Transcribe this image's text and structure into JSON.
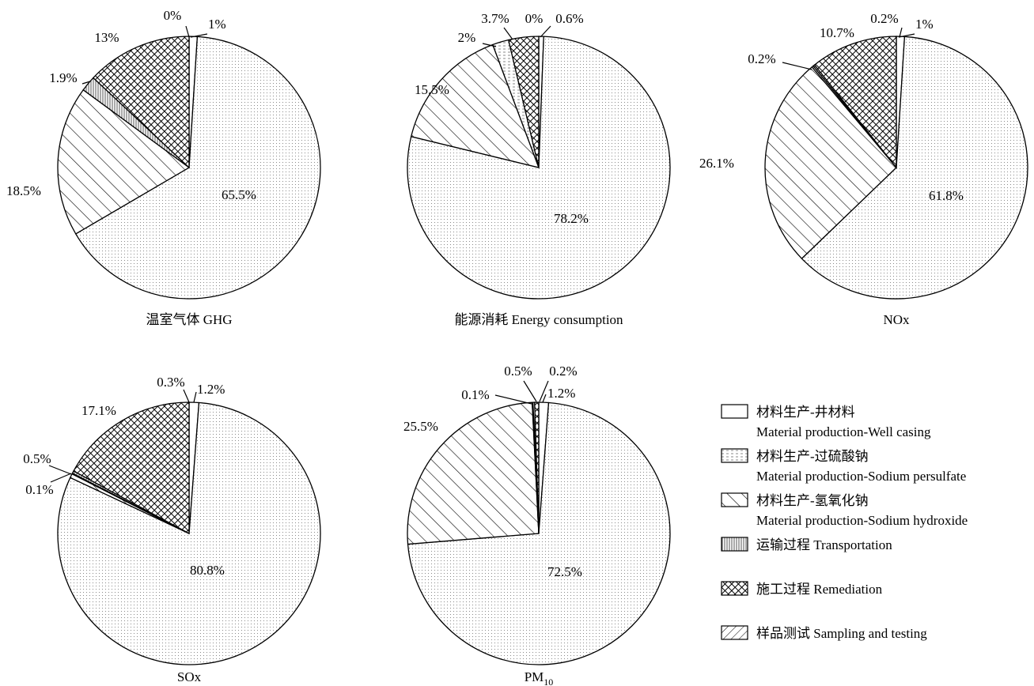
{
  "legend": [
    {
      "key": "well_casing",
      "zh": "材料生产-井材料",
      "en": "Material production-Well casing",
      "pattern": "none"
    },
    {
      "key": "sodium_persulfate",
      "zh": "材料生产-过硫酸钠",
      "en": "Material production-Sodium persulfate",
      "pattern": "dashgrid"
    },
    {
      "key": "sodium_hydroxide",
      "zh": "材料生产-氢氧化钠",
      "en": "Material production-Sodium hydroxide",
      "pattern": "diag-right"
    },
    {
      "key": "transportation",
      "zh": "运输过程",
      "en": "Transportation",
      "pattern": "vertical"
    },
    {
      "key": "remediation",
      "zh": "施工过程",
      "en": "Remediation",
      "pattern": "crosshatch"
    },
    {
      "key": "sampling",
      "zh": "样品测试",
      "en": "Sampling and testing",
      "pattern": "dots"
    }
  ],
  "chart_data": [
    {
      "type": "pie",
      "title": "温室气体 GHG",
      "categories": [
        "well_casing",
        "sodium_persulfate",
        "sodium_hydroxide",
        "transportation",
        "remediation",
        "sampling"
      ],
      "values": [
        1,
        0,
        18.5,
        1.9,
        13,
        65.5
      ],
      "labels": [
        "1%",
        "0%",
        "18.5%",
        "1.9%",
        "13%",
        "65.5%"
      ]
    },
    {
      "type": "pie",
      "title": "能源消耗 Energy consumption",
      "categories": [
        "well_casing",
        "sodium_persulfate",
        "sodium_hydroxide",
        "transportation",
        "remediation",
        "sampling"
      ],
      "values": [
        0.6,
        2,
        15.5,
        0,
        3.7,
        78.2
      ],
      "labels": [
        "0.6%",
        "2%",
        "15.5%",
        "0%",
        "3.7%",
        "78.2%"
      ]
    },
    {
      "type": "pie",
      "title": "NOx",
      "categories": [
        "well_casing",
        "sodium_persulfate",
        "sodium_hydroxide",
        "transportation",
        "remediation",
        "sampling"
      ],
      "values": [
        1,
        0.2,
        26.1,
        0.2,
        10.7,
        61.8
      ],
      "labels": [
        "1%",
        "0.2%",
        "26.1%",
        "0.2%",
        "10.7%",
        "61.8%"
      ]
    },
    {
      "type": "pie",
      "title": "SOx",
      "categories": [
        "well_casing",
        "sodium_persulfate",
        "sodium_hydroxide",
        "transportation",
        "remediation",
        "sampling"
      ],
      "values": [
        1.2,
        0.1,
        0.5,
        0.3,
        17.1,
        80.8
      ],
      "labels": [
        "1.2%",
        "0.1%",
        "0.5%",
        "0.3%",
        "17.1%",
        "80.8%"
      ]
    },
    {
      "type": "pie",
      "title": "PM",
      "title_subscript": "10",
      "categories": [
        "well_casing",
        "sodium_persulfate",
        "sodium_hydroxide",
        "transportation",
        "remediation",
        "sampling"
      ],
      "values": [
        1.2,
        0.1,
        25.5,
        0.2,
        0.5,
        72.5
      ],
      "labels": [
        "1.2%",
        "0.1%",
        "25.5%",
        "0.2%",
        "0.5%",
        "72.5%"
      ]
    }
  ]
}
